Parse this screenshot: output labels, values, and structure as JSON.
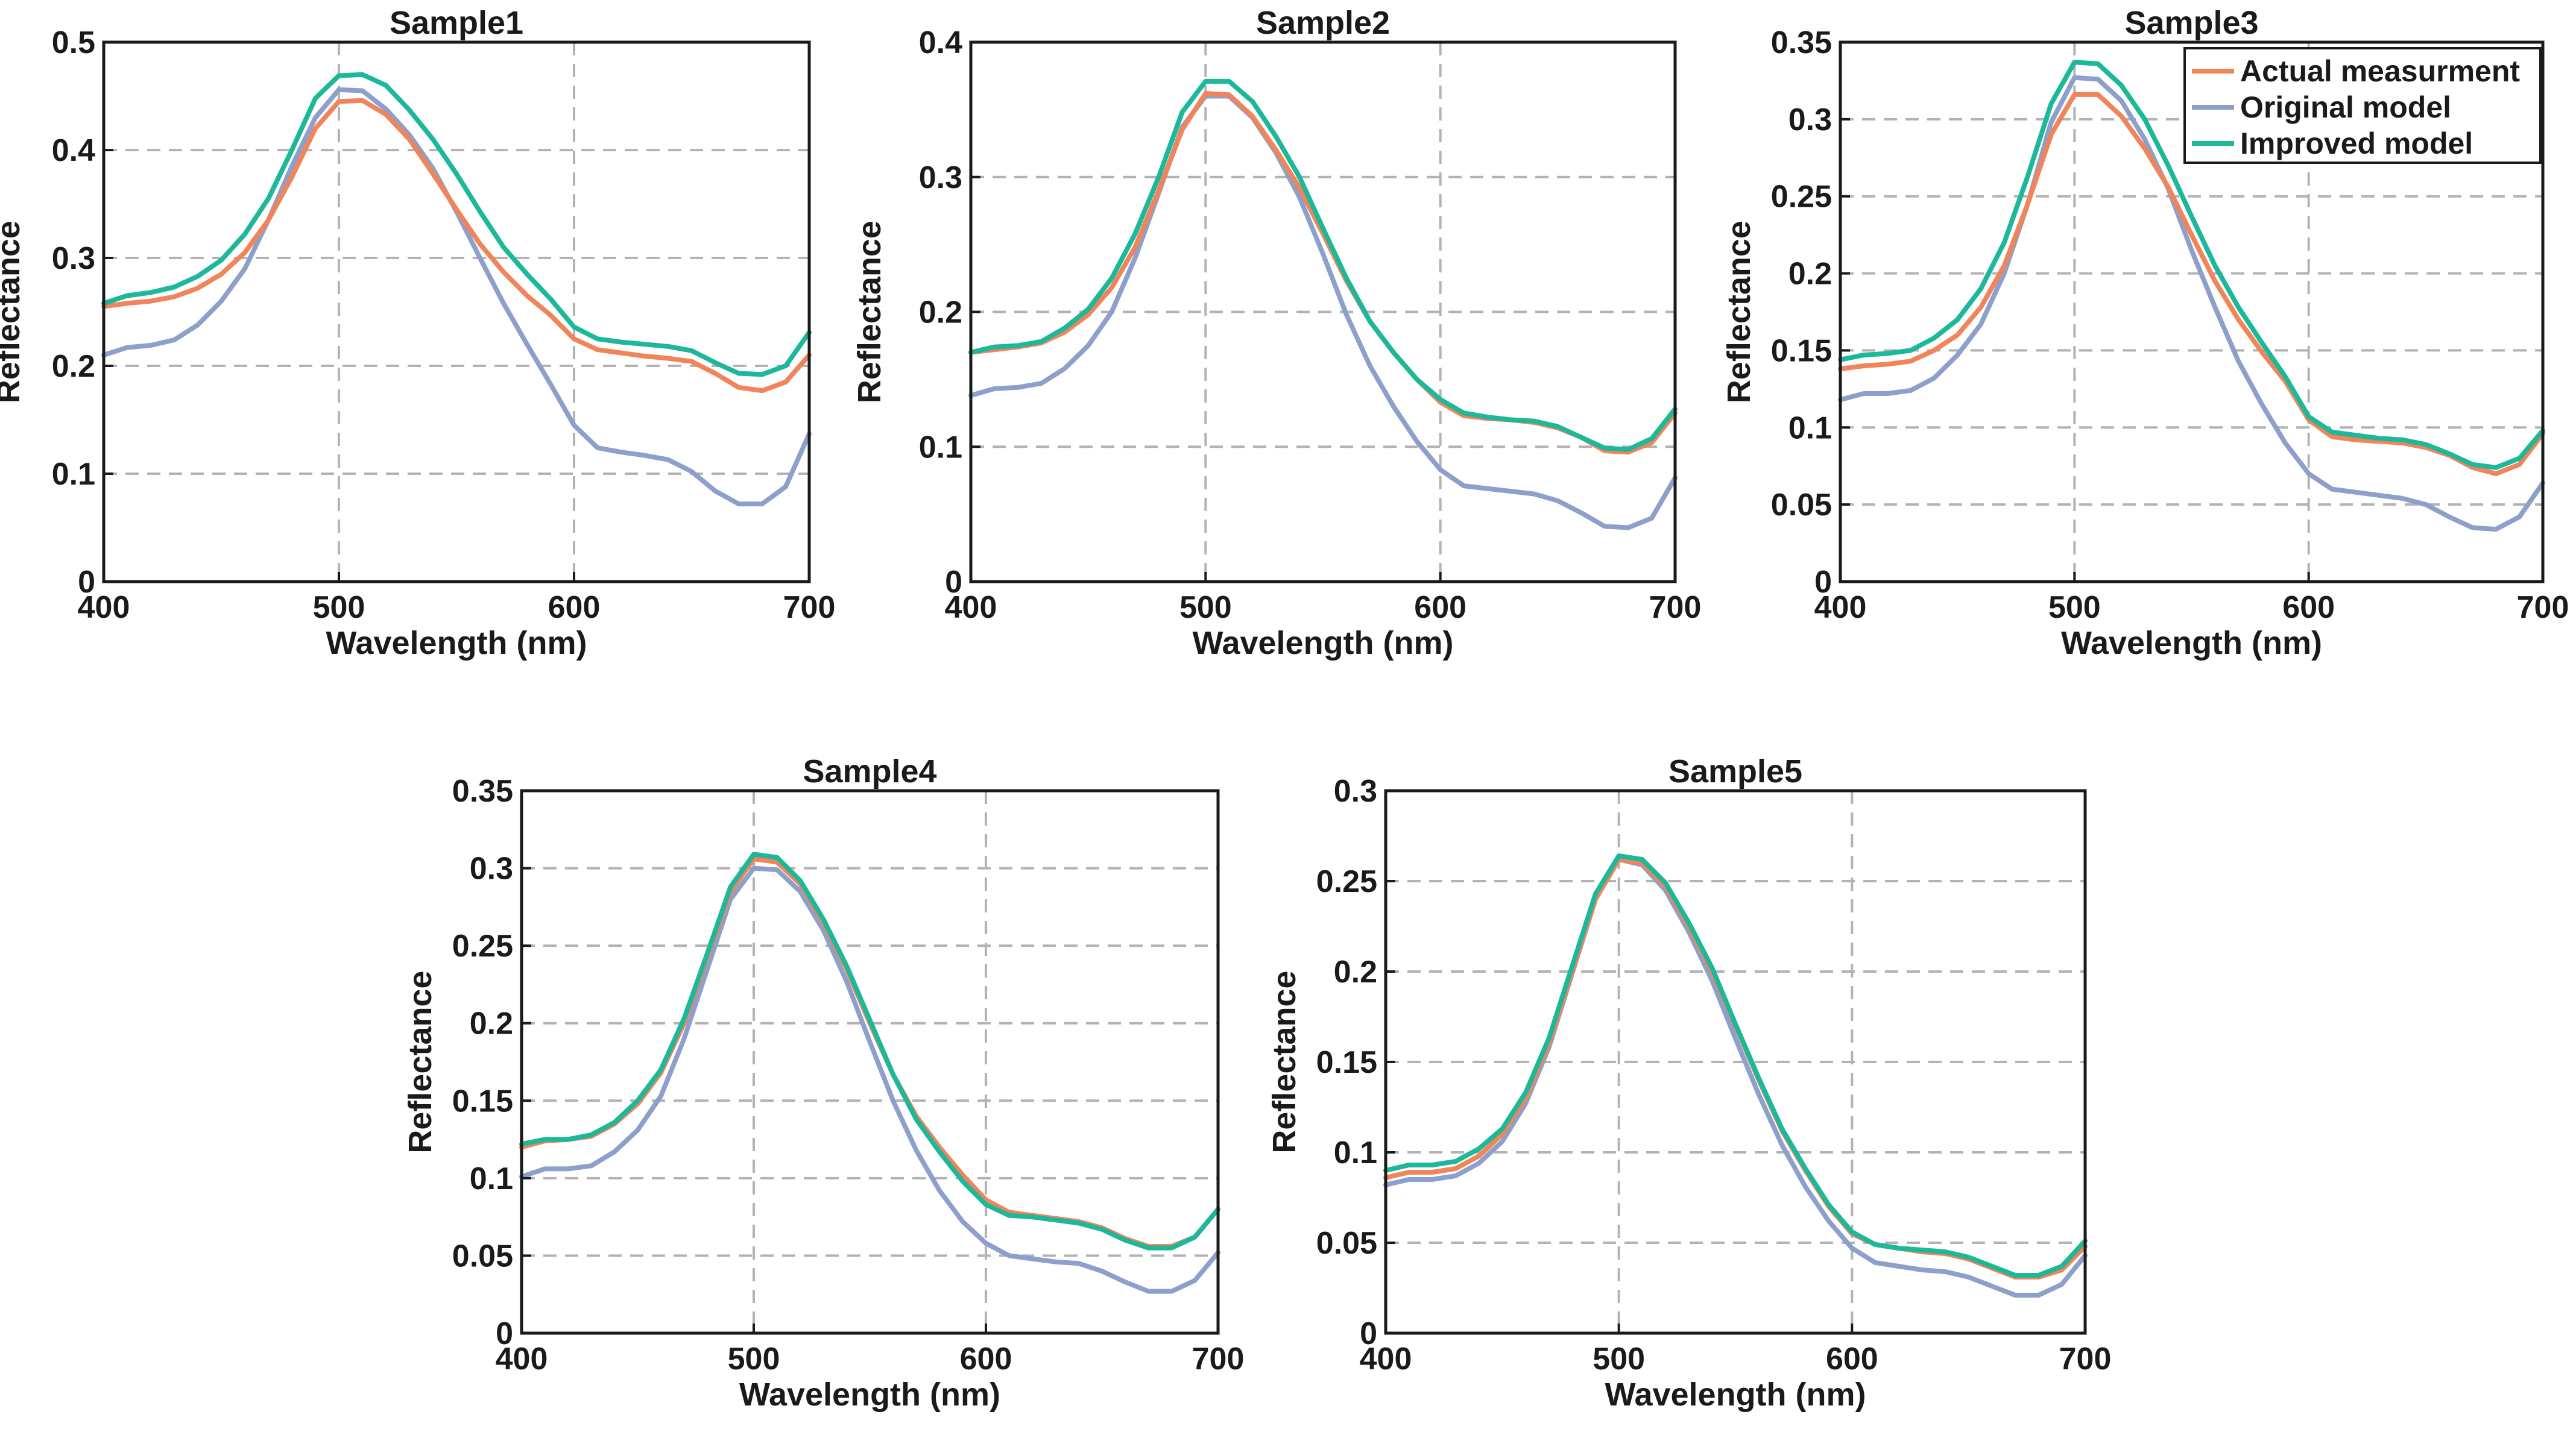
{
  "chart_data": [
    {
      "type": "line",
      "title": "Sample1",
      "xlabel": "Wavelength (nm)",
      "ylabel": "Reflectance",
      "xlim": [
        400,
        700
      ],
      "ylim": [
        0,
        0.5
      ],
      "xticks": [
        "400",
        "500",
        "600",
        "700"
      ],
      "yticks": [
        "0",
        "0.1",
        "0.2",
        "0.3",
        "0.4",
        "0.5"
      ],
      "grid": true,
      "x": [
        400,
        410,
        420,
        430,
        440,
        450,
        460,
        470,
        480,
        490,
        500,
        510,
        520,
        530,
        540,
        550,
        560,
        570,
        580,
        590,
        600,
        610,
        620,
        630,
        640,
        650,
        660,
        670,
        680,
        690,
        700
      ],
      "series": [
        {
          "name": "Actual measurment",
          "values": [
            0.255,
            0.258,
            0.26,
            0.264,
            0.272,
            0.285,
            0.305,
            0.335,
            0.375,
            0.42,
            0.445,
            0.446,
            0.433,
            0.41,
            0.378,
            0.345,
            0.313,
            0.287,
            0.265,
            0.247,
            0.225,
            0.215,
            0.212,
            0.209,
            0.207,
            0.204,
            0.193,
            0.18,
            0.177,
            0.185,
            0.21
          ]
        },
        {
          "name": "Original model",
          "values": [
            0.21,
            0.217,
            0.219,
            0.224,
            0.238,
            0.26,
            0.29,
            0.335,
            0.385,
            0.43,
            0.456,
            0.455,
            0.438,
            0.414,
            0.383,
            0.343,
            0.3,
            0.258,
            0.22,
            0.183,
            0.145,
            0.124,
            0.12,
            0.117,
            0.113,
            0.102,
            0.084,
            0.072,
            0.072,
            0.088,
            0.137
          ]
        },
        {
          "name": "Improved model",
          "values": [
            0.258,
            0.265,
            0.268,
            0.273,
            0.283,
            0.298,
            0.322,
            0.355,
            0.4,
            0.448,
            0.469,
            0.47,
            0.46,
            0.437,
            0.41,
            0.378,
            0.343,
            0.31,
            0.285,
            0.262,
            0.236,
            0.225,
            0.222,
            0.22,
            0.218,
            0.214,
            0.203,
            0.193,
            0.192,
            0.2,
            0.231
          ]
        }
      ]
    },
    {
      "type": "line",
      "title": "Sample2",
      "xlabel": "Wavelength (nm)",
      "ylabel": "Reflectance",
      "xlim": [
        400,
        700
      ],
      "ylim": [
        0,
        0.4
      ],
      "xticks": [
        "400",
        "500",
        "600",
        "700"
      ],
      "yticks": [
        "0",
        "0.1",
        "0.2",
        "0.3",
        "0.4"
      ],
      "grid": true,
      "x": [
        400,
        410,
        420,
        430,
        440,
        450,
        460,
        470,
        480,
        490,
        500,
        510,
        520,
        530,
        540,
        550,
        560,
        570,
        580,
        590,
        600,
        610,
        620,
        630,
        640,
        650,
        660,
        670,
        680,
        690,
        700
      ],
      "series": [
        {
          "name": "Actual measurment",
          "values": [
            0.17,
            0.172,
            0.174,
            0.177,
            0.185,
            0.198,
            0.218,
            0.248,
            0.29,
            0.335,
            0.362,
            0.361,
            0.345,
            0.32,
            0.292,
            0.258,
            0.223,
            0.193,
            0.17,
            0.15,
            0.133,
            0.123,
            0.121,
            0.12,
            0.118,
            0.114,
            0.107,
            0.097,
            0.096,
            0.103,
            0.125
          ]
        },
        {
          "name": "Original model",
          "values": [
            0.138,
            0.143,
            0.144,
            0.147,
            0.158,
            0.175,
            0.2,
            0.24,
            0.288,
            0.337,
            0.36,
            0.36,
            0.344,
            0.318,
            0.285,
            0.243,
            0.198,
            0.16,
            0.13,
            0.104,
            0.083,
            0.071,
            0.069,
            0.067,
            0.065,
            0.06,
            0.051,
            0.041,
            0.04,
            0.047,
            0.077
          ]
        },
        {
          "name": "Improved model",
          "values": [
            0.17,
            0.174,
            0.175,
            0.178,
            0.188,
            0.202,
            0.225,
            0.258,
            0.3,
            0.348,
            0.371,
            0.371,
            0.356,
            0.33,
            0.3,
            0.262,
            0.225,
            0.193,
            0.17,
            0.15,
            0.135,
            0.125,
            0.122,
            0.12,
            0.119,
            0.115,
            0.107,
            0.099,
            0.098,
            0.106,
            0.128
          ]
        }
      ]
    },
    {
      "type": "line",
      "title": "Sample3",
      "xlabel": "Wavelength (nm)",
      "ylabel": "Reflectance",
      "xlim": [
        400,
        700
      ],
      "ylim": [
        0,
        0.35
      ],
      "xticks": [
        "400",
        "500",
        "600",
        "700"
      ],
      "yticks": [
        "0",
        "0.05",
        "0.1",
        "0.15",
        "0.2",
        "0.25",
        "0.3",
        "0.35"
      ],
      "grid": true,
      "legend": "top-right",
      "x": [
        400,
        410,
        420,
        430,
        440,
        450,
        460,
        470,
        480,
        490,
        500,
        510,
        520,
        530,
        540,
        550,
        560,
        570,
        580,
        590,
        600,
        610,
        620,
        630,
        640,
        650,
        660,
        670,
        680,
        690,
        700
      ],
      "series": [
        {
          "name": "Actual measurment",
          "values": [
            0.138,
            0.14,
            0.141,
            0.143,
            0.15,
            0.16,
            0.178,
            0.205,
            0.245,
            0.29,
            0.316,
            0.316,
            0.302,
            0.281,
            0.256,
            0.225,
            0.195,
            0.17,
            0.149,
            0.13,
            0.105,
            0.094,
            0.092,
            0.091,
            0.09,
            0.087,
            0.082,
            0.074,
            0.07,
            0.076,
            0.096
          ]
        },
        {
          "name": "Original model",
          "values": [
            0.118,
            0.122,
            0.122,
            0.124,
            0.132,
            0.147,
            0.167,
            0.2,
            0.245,
            0.298,
            0.327,
            0.326,
            0.312,
            0.287,
            0.255,
            0.215,
            0.178,
            0.143,
            0.115,
            0.09,
            0.07,
            0.06,
            0.058,
            0.056,
            0.054,
            0.05,
            0.042,
            0.035,
            0.034,
            0.042,
            0.064
          ]
        },
        {
          "name": "Improved model",
          "values": [
            0.144,
            0.147,
            0.148,
            0.15,
            0.158,
            0.17,
            0.19,
            0.22,
            0.263,
            0.31,
            0.337,
            0.336,
            0.322,
            0.3,
            0.27,
            0.237,
            0.205,
            0.178,
            0.155,
            0.133,
            0.107,
            0.097,
            0.095,
            0.093,
            0.092,
            0.089,
            0.083,
            0.076,
            0.074,
            0.08,
            0.098
          ]
        }
      ]
    },
    {
      "type": "line",
      "title": "Sample4",
      "xlabel": "Wavelength (nm)",
      "ylabel": "Reflectance",
      "xlim": [
        400,
        700
      ],
      "ylim": [
        0,
        0.35
      ],
      "xticks": [
        "400",
        "500",
        "600",
        "700"
      ],
      "yticks": [
        "0",
        "0.05",
        "0.1",
        "0.15",
        "0.2",
        "0.25",
        "0.3",
        "0.35"
      ],
      "grid": true,
      "x": [
        400,
        410,
        420,
        430,
        440,
        450,
        460,
        470,
        480,
        490,
        500,
        510,
        520,
        530,
        540,
        550,
        560,
        570,
        580,
        590,
        600,
        610,
        620,
        630,
        640,
        650,
        660,
        670,
        680,
        690,
        700
      ],
      "series": [
        {
          "name": "Actual measurment",
          "values": [
            0.12,
            0.124,
            0.125,
            0.127,
            0.135,
            0.148,
            0.168,
            0.2,
            0.243,
            0.285,
            0.306,
            0.304,
            0.29,
            0.265,
            0.235,
            0.2,
            0.167,
            0.14,
            0.12,
            0.102,
            0.086,
            0.078,
            0.076,
            0.074,
            0.072,
            0.068,
            0.061,
            0.056,
            0.056,
            0.062,
            0.08
          ]
        },
        {
          "name": "Original model",
          "values": [
            0.101,
            0.106,
            0.106,
            0.108,
            0.117,
            0.131,
            0.153,
            0.19,
            0.235,
            0.28,
            0.3,
            0.299,
            0.285,
            0.26,
            0.227,
            0.188,
            0.15,
            0.118,
            0.092,
            0.072,
            0.058,
            0.05,
            0.048,
            0.046,
            0.045,
            0.04,
            0.033,
            0.027,
            0.027,
            0.034,
            0.052
          ]
        },
        {
          "name": "Improved model",
          "values": [
            0.122,
            0.125,
            0.125,
            0.128,
            0.136,
            0.15,
            0.17,
            0.203,
            0.245,
            0.288,
            0.309,
            0.307,
            0.292,
            0.267,
            0.237,
            0.202,
            0.167,
            0.138,
            0.117,
            0.098,
            0.083,
            0.076,
            0.075,
            0.073,
            0.071,
            0.067,
            0.06,
            0.055,
            0.055,
            0.062,
            0.08
          ]
        }
      ]
    },
    {
      "type": "line",
      "title": "Sample5",
      "xlabel": "Wavelength (nm)",
      "ylabel": "Reflectance",
      "xlim": [
        400,
        700
      ],
      "ylim": [
        0,
        0.3
      ],
      "xticks": [
        "400",
        "500",
        "600",
        "700"
      ],
      "yticks": [
        "0",
        "0.05",
        "0.1",
        "0.15",
        "0.2",
        "0.25",
        "0.3"
      ],
      "grid": true,
      "x": [
        400,
        410,
        420,
        430,
        440,
        450,
        460,
        470,
        480,
        490,
        500,
        510,
        520,
        530,
        540,
        550,
        560,
        570,
        580,
        590,
        600,
        610,
        620,
        630,
        640,
        650,
        660,
        670,
        680,
        690,
        700
      ],
      "series": [
        {
          "name": "Actual measurment",
          "values": [
            0.086,
            0.089,
            0.089,
            0.091,
            0.098,
            0.11,
            0.13,
            0.16,
            0.2,
            0.24,
            0.262,
            0.26,
            0.247,
            0.225,
            0.2,
            0.17,
            0.14,
            0.112,
            0.09,
            0.07,
            0.055,
            0.049,
            0.047,
            0.045,
            0.044,
            0.041,
            0.036,
            0.031,
            0.031,
            0.035,
            0.048
          ]
        },
        {
          "name": "Original model",
          "values": [
            0.082,
            0.085,
            0.085,
            0.087,
            0.094,
            0.106,
            0.127,
            0.158,
            0.199,
            0.24,
            0.262,
            0.259,
            0.245,
            0.222,
            0.195,
            0.163,
            0.132,
            0.104,
            0.081,
            0.062,
            0.047,
            0.039,
            0.037,
            0.035,
            0.034,
            0.031,
            0.026,
            0.021,
            0.021,
            0.027,
            0.043
          ]
        },
        {
          "name": "Improved model",
          "values": [
            0.09,
            0.093,
            0.093,
            0.095,
            0.102,
            0.113,
            0.133,
            0.163,
            0.203,
            0.243,
            0.264,
            0.262,
            0.249,
            0.227,
            0.202,
            0.171,
            0.141,
            0.113,
            0.091,
            0.071,
            0.056,
            0.049,
            0.047,
            0.046,
            0.045,
            0.042,
            0.037,
            0.032,
            0.032,
            0.037,
            0.051
          ]
        }
      ]
    }
  ],
  "colors": {
    "Actual measurment": "#F0845A",
    "Original model": "#8DA0CB",
    "Improved model": "#1DB89A"
  }
}
